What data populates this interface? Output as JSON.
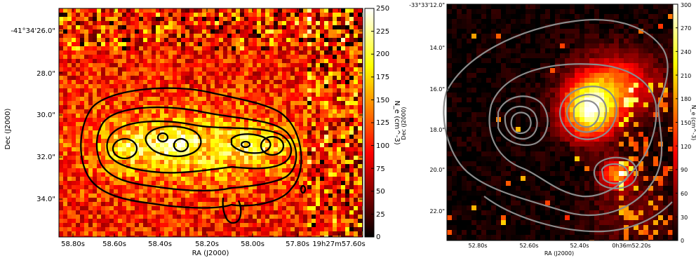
{
  "chart_data": [
    {
      "type": "heatmap",
      "title": "",
      "xlabel": "RA (J2000)",
      "ylabel": "Dec (J2000)",
      "x_ticks": [
        "58.80s",
        "58.60s",
        "58.40s",
        "58.20s",
        "58.00s",
        "57.80s",
        "19h27m57.60s"
      ],
      "y_ticks": [
        "-41°34'26.0\"",
        "28.0\"",
        "30.0\"",
        "32.0\"",
        "34.0\""
      ],
      "colorbar": {
        "label": "N_e (cm^-3)",
        "range": [
          0,
          250
        ],
        "ticks": [
          "0",
          "25",
          "50",
          "75",
          "100",
          "125",
          "150",
          "175",
          "200",
          "225",
          "250"
        ]
      },
      "colormap": "hot",
      "overlay": "black contours",
      "grid": false
    },
    {
      "type": "heatmap",
      "title": "",
      "xlabel": "RA (J2000)",
      "ylabel": "Dec (J2000)",
      "x_ticks": [
        "52.80s",
        "52.60s",
        "52.40s",
        "0h36m52.20s"
      ],
      "y_ticks": [
        "-33°33'12.0\"",
        "14.0\"",
        "16.0\"",
        "18.0\"",
        "20.0\"",
        "22.0\""
      ],
      "colorbar": {
        "label": "N_e (cm^-3)",
        "range": [
          0,
          300
        ],
        "ticks": [
          "0",
          "30",
          "60",
          "90",
          "120",
          "150",
          "180",
          "210",
          "240",
          "270",
          "300"
        ]
      },
      "colormap": "hot",
      "overlay": "grey contours",
      "grid": false
    }
  ]
}
